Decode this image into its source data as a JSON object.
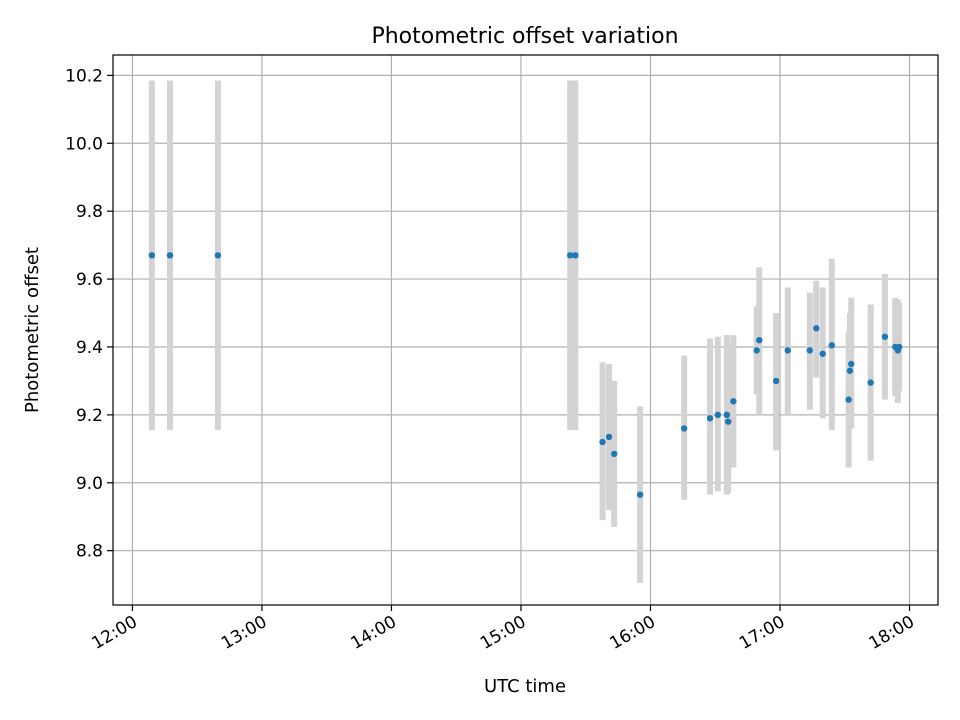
{
  "chart_data": {
    "type": "scatter",
    "title": "Photometric offset variation",
    "xlabel": "UTC time",
    "ylabel": "Photometric offset",
    "x_unit": "UTC hours",
    "xlim": [
      11.85,
      18.22
    ],
    "ylim": [
      8.64,
      10.26
    ],
    "x_ticks": [
      12,
      13,
      14,
      15,
      16,
      17,
      18
    ],
    "x_tick_labels": [
      "12:00",
      "13:00",
      "14:00",
      "15:00",
      "16:00",
      "17:00",
      "18:00"
    ],
    "y_ticks": [
      8.8,
      9.0,
      9.2,
      9.4,
      9.6,
      9.8,
      10.0,
      10.2
    ],
    "y_tick_labels": [
      "8.8",
      "9.0",
      "9.2",
      "9.4",
      "9.6",
      "9.8",
      "10.0",
      "10.2"
    ],
    "grid": true,
    "marker_color": "#1f77b4",
    "errorbar_color": "#d3d3d3",
    "points": [
      {
        "x": 12.15,
        "y": 9.67,
        "lo": 9.155,
        "hi": 10.185
      },
      {
        "x": 12.29,
        "y": 9.67,
        "lo": 9.155,
        "hi": 10.185
      },
      {
        "x": 12.66,
        "y": 9.67,
        "lo": 9.155,
        "hi": 10.185
      },
      {
        "x": 15.38,
        "y": 9.67,
        "lo": 9.155,
        "hi": 10.185
      },
      {
        "x": 15.42,
        "y": 9.67,
        "lo": 9.155,
        "hi": 10.185
      },
      {
        "x": 15.63,
        "y": 9.12,
        "lo": 8.89,
        "hi": 9.355
      },
      {
        "x": 15.68,
        "y": 9.135,
        "lo": 8.92,
        "hi": 9.35
      },
      {
        "x": 15.72,
        "y": 9.085,
        "lo": 8.87,
        "hi": 9.3
      },
      {
        "x": 15.92,
        "y": 8.965,
        "lo": 8.705,
        "hi": 9.225
      },
      {
        "x": 16.26,
        "y": 9.16,
        "lo": 8.95,
        "hi": 9.375
      },
      {
        "x": 16.46,
        "y": 9.19,
        "lo": 8.965,
        "hi": 9.425
      },
      {
        "x": 16.52,
        "y": 9.2,
        "lo": 8.975,
        "hi": 9.43
      },
      {
        "x": 16.59,
        "y": 9.2,
        "lo": 8.965,
        "hi": 9.435
      },
      {
        "x": 16.6,
        "y": 9.18,
        "lo": 8.97,
        "hi": 9.4
      },
      {
        "x": 16.64,
        "y": 9.24,
        "lo": 9.045,
        "hi": 9.435
      },
      {
        "x": 16.82,
        "y": 9.39,
        "lo": 9.26,
        "hi": 9.52
      },
      {
        "x": 16.84,
        "y": 9.42,
        "lo": 9.2,
        "hi": 9.635
      },
      {
        "x": 16.97,
        "y": 9.3,
        "lo": 9.095,
        "hi": 9.5
      },
      {
        "x": 17.06,
        "y": 9.39,
        "lo": 9.2,
        "hi": 9.575
      },
      {
        "x": 17.23,
        "y": 9.39,
        "lo": 9.215,
        "hi": 9.56
      },
      {
        "x": 17.28,
        "y": 9.455,
        "lo": 9.31,
        "hi": 9.595
      },
      {
        "x": 17.33,
        "y": 9.38,
        "lo": 9.19,
        "hi": 9.575
      },
      {
        "x": 17.4,
        "y": 9.405,
        "lo": 9.155,
        "hi": 9.66
      },
      {
        "x": 17.53,
        "y": 9.245,
        "lo": 9.045,
        "hi": 9.445
      },
      {
        "x": 17.54,
        "y": 9.33,
        "lo": 9.16,
        "hi": 9.5
      },
      {
        "x": 17.55,
        "y": 9.35,
        "lo": 9.16,
        "hi": 9.545
      },
      {
        "x": 17.7,
        "y": 9.295,
        "lo": 9.065,
        "hi": 9.525
      },
      {
        "x": 17.81,
        "y": 9.43,
        "lo": 9.245,
        "hi": 9.615
      },
      {
        "x": 17.89,
        "y": 9.4,
        "lo": 9.255,
        "hi": 9.545
      },
      {
        "x": 17.91,
        "y": 9.39,
        "lo": 9.235,
        "hi": 9.54
      },
      {
        "x": 17.92,
        "y": 9.4,
        "lo": 9.27,
        "hi": 9.53
      }
    ]
  }
}
